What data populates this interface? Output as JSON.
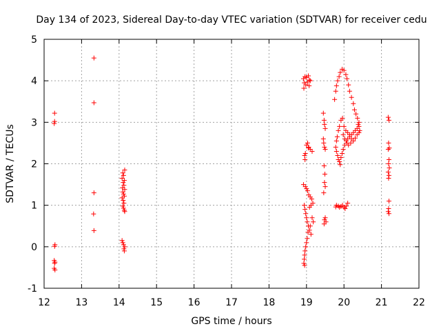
{
  "chart_data": {
    "type": "scatter",
    "title": "Day 134 of 2023, Sidereal Day-to-day VTEC variation (SDTVAR) for receiver cedu",
    "xlabel": "GPS time / hours",
    "ylabel": "SDTVAR / TECUs",
    "xlim": [
      12,
      22
    ],
    "ylim": [
      -1,
      5
    ],
    "xticks": [
      "12",
      "13",
      "14",
      "15",
      "16",
      "17",
      "18",
      "19",
      "20",
      "21",
      "22"
    ],
    "yticks": [
      "-1",
      "0",
      "1",
      "2",
      "3",
      "4",
      "5"
    ],
    "grid": true,
    "marker": "+",
    "color": "#ff0000",
    "series": [
      {
        "name": "SDTVAR",
        "points": [
          [
            12.28,
            3.22
          ],
          [
            12.28,
            3.02
          ],
          [
            12.27,
            2.97
          ],
          [
            12.29,
            0.05
          ],
          [
            12.28,
            0.01
          ],
          [
            12.27,
            -0.33
          ],
          [
            12.29,
            -0.37
          ],
          [
            12.28,
            -0.4
          ],
          [
            12.27,
            -0.52
          ],
          [
            12.29,
            -0.56
          ],
          [
            13.33,
            4.55
          ],
          [
            13.33,
            3.47
          ],
          [
            13.33,
            1.3
          ],
          [
            13.32,
            0.79
          ],
          [
            13.33,
            0.39
          ],
          [
            14.1,
            1.78
          ],
          [
            14.15,
            1.85
          ],
          [
            14.12,
            1.72
          ],
          [
            14.08,
            1.65
          ],
          [
            14.14,
            1.6
          ],
          [
            14.11,
            1.55
          ],
          [
            14.13,
            1.48
          ],
          [
            14.09,
            1.42
          ],
          [
            14.15,
            1.38
          ],
          [
            14.1,
            1.32
          ],
          [
            14.12,
            1.27
          ],
          [
            14.14,
            1.22
          ],
          [
            14.08,
            1.18
          ],
          [
            14.11,
            1.12
          ],
          [
            14.13,
            1.05
          ],
          [
            14.1,
            0.98
          ],
          [
            14.12,
            0.93
          ],
          [
            14.14,
            0.88
          ],
          [
            14.15,
            0.85
          ],
          [
            14.08,
            0.15
          ],
          [
            14.1,
            0.1
          ],
          [
            14.12,
            0.05
          ],
          [
            14.15,
            0.0
          ],
          [
            14.13,
            -0.05
          ],
          [
            14.14,
            -0.1
          ],
          [
            18.92,
            4.05
          ],
          [
            18.96,
            4.1
          ],
          [
            19.0,
            4.08
          ],
          [
            19.05,
            4.12
          ],
          [
            19.08,
            4.02
          ],
          [
            18.94,
            3.95
          ],
          [
            18.98,
            3.9
          ],
          [
            19.03,
            3.97
          ],
          [
            19.07,
            3.88
          ],
          [
            18.93,
            3.82
          ],
          [
            19.1,
            4.0
          ],
          [
            18.97,
            2.25
          ],
          [
            18.95,
            2.2
          ],
          [
            19.0,
            2.45
          ],
          [
            19.03,
            2.5
          ],
          [
            19.06,
            2.4
          ],
          [
            19.1,
            2.35
          ],
          [
            19.15,
            2.3
          ],
          [
            18.96,
            2.1
          ],
          [
            19.05,
            2.38
          ],
          [
            18.92,
            1.5
          ],
          [
            18.97,
            1.45
          ],
          [
            19.0,
            1.4
          ],
          [
            19.03,
            1.35
          ],
          [
            19.06,
            1.25
          ],
          [
            19.1,
            1.2
          ],
          [
            19.14,
            1.15
          ],
          [
            19.17,
            1.05
          ],
          [
            19.12,
            1.0
          ],
          [
            19.08,
            0.95
          ],
          [
            18.94,
            1.0
          ],
          [
            18.96,
            0.9
          ],
          [
            18.98,
            0.8
          ],
          [
            19.0,
            0.7
          ],
          [
            19.02,
            0.6
          ],
          [
            19.05,
            0.5
          ],
          [
            19.08,
            0.4
          ],
          [
            19.12,
            0.3
          ],
          [
            19.15,
            0.7
          ],
          [
            19.18,
            0.6
          ],
          [
            19.02,
            0.2
          ],
          [
            19.0,
            0.1
          ],
          [
            18.98,
            0.0
          ],
          [
            18.96,
            -0.1
          ],
          [
            18.95,
            -0.2
          ],
          [
            18.94,
            -0.3
          ],
          [
            18.93,
            -0.4
          ],
          [
            18.95,
            -0.45
          ],
          [
            19.04,
            0.35
          ],
          [
            19.1,
            0.5
          ],
          [
            19.45,
            3.22
          ],
          [
            19.47,
            3.05
          ],
          [
            19.48,
            2.95
          ],
          [
            19.5,
            2.85
          ],
          [
            19.45,
            2.6
          ],
          [
            19.46,
            2.5
          ],
          [
            19.48,
            2.4
          ],
          [
            19.5,
            2.35
          ],
          [
            19.47,
            1.95
          ],
          [
            19.49,
            1.75
          ],
          [
            19.48,
            1.55
          ],
          [
            19.5,
            1.45
          ],
          [
            19.46,
            1.3
          ],
          [
            19.5,
            0.7
          ],
          [
            19.48,
            0.65
          ],
          [
            19.52,
            0.6
          ],
          [
            19.47,
            0.55
          ],
          [
            19.75,
            3.55
          ],
          [
            19.78,
            3.75
          ],
          [
            19.8,
            3.88
          ],
          [
            19.83,
            4.0
          ],
          [
            19.87,
            4.1
          ],
          [
            19.9,
            4.2
          ],
          [
            19.95,
            4.28
          ],
          [
            20.0,
            4.25
          ],
          [
            20.05,
            4.15
          ],
          [
            20.08,
            4.05
          ],
          [
            20.12,
            3.9
          ],
          [
            20.15,
            3.75
          ],
          [
            20.2,
            3.6
          ],
          [
            20.25,
            3.45
          ],
          [
            20.28,
            3.3
          ],
          [
            20.32,
            3.2
          ],
          [
            20.36,
            3.1
          ],
          [
            20.4,
            3.0
          ],
          [
            19.78,
            2.4
          ],
          [
            19.8,
            2.55
          ],
          [
            19.82,
            2.65
          ],
          [
            19.85,
            2.8
          ],
          [
            19.88,
            2.9
          ],
          [
            19.92,
            3.05
          ],
          [
            19.96,
            3.1
          ],
          [
            19.8,
            2.3
          ],
          [
            19.83,
            2.2
          ],
          [
            19.85,
            2.1
          ],
          [
            19.88,
            2.05
          ],
          [
            19.9,
            1.98
          ],
          [
            19.92,
            2.15
          ],
          [
            19.95,
            2.25
          ],
          [
            19.98,
            2.35
          ],
          [
            20.02,
            2.45
          ],
          [
            20.06,
            2.55
          ],
          [
            20.1,
            2.6
          ],
          [
            20.15,
            2.65
          ],
          [
            20.2,
            2.7
          ],
          [
            20.25,
            2.75
          ],
          [
            20.3,
            2.8
          ],
          [
            20.35,
            2.85
          ],
          [
            20.4,
            2.9
          ],
          [
            20.0,
            2.9
          ],
          [
            20.05,
            2.8
          ],
          [
            20.1,
            2.75
          ],
          [
            20.15,
            2.7
          ],
          [
            20.2,
            2.6
          ],
          [
            20.25,
            2.55
          ],
          [
            20.3,
            2.62
          ],
          [
            20.35,
            2.7
          ],
          [
            20.4,
            2.75
          ],
          [
            20.42,
            2.8
          ],
          [
            20.38,
            2.95
          ],
          [
            19.98,
            2.7
          ],
          [
            20.02,
            2.6
          ],
          [
            20.08,
            2.5
          ],
          [
            20.12,
            2.45
          ],
          [
            20.18,
            2.5
          ],
          [
            19.8,
            1.0
          ],
          [
            19.85,
            0.98
          ],
          [
            19.88,
            0.95
          ],
          [
            19.92,
            0.97
          ],
          [
            19.96,
            1.0
          ],
          [
            20.0,
            0.95
          ],
          [
            20.03,
            0.92
          ],
          [
            20.06,
            0.98
          ],
          [
            20.1,
            1.05
          ],
          [
            19.78,
            0.96
          ],
          [
            21.18,
            3.12
          ],
          [
            21.2,
            3.05
          ],
          [
            21.19,
            2.5
          ],
          [
            21.21,
            2.38
          ],
          [
            21.18,
            2.35
          ],
          [
            21.2,
            2.1
          ],
          [
            21.19,
            2.0
          ],
          [
            21.21,
            1.9
          ],
          [
            21.18,
            1.8
          ],
          [
            21.2,
            1.72
          ],
          [
            21.19,
            1.65
          ],
          [
            21.2,
            1.1
          ],
          [
            21.19,
            0.92
          ],
          [
            21.18,
            0.85
          ],
          [
            21.2,
            0.8
          ]
        ]
      }
    ]
  }
}
